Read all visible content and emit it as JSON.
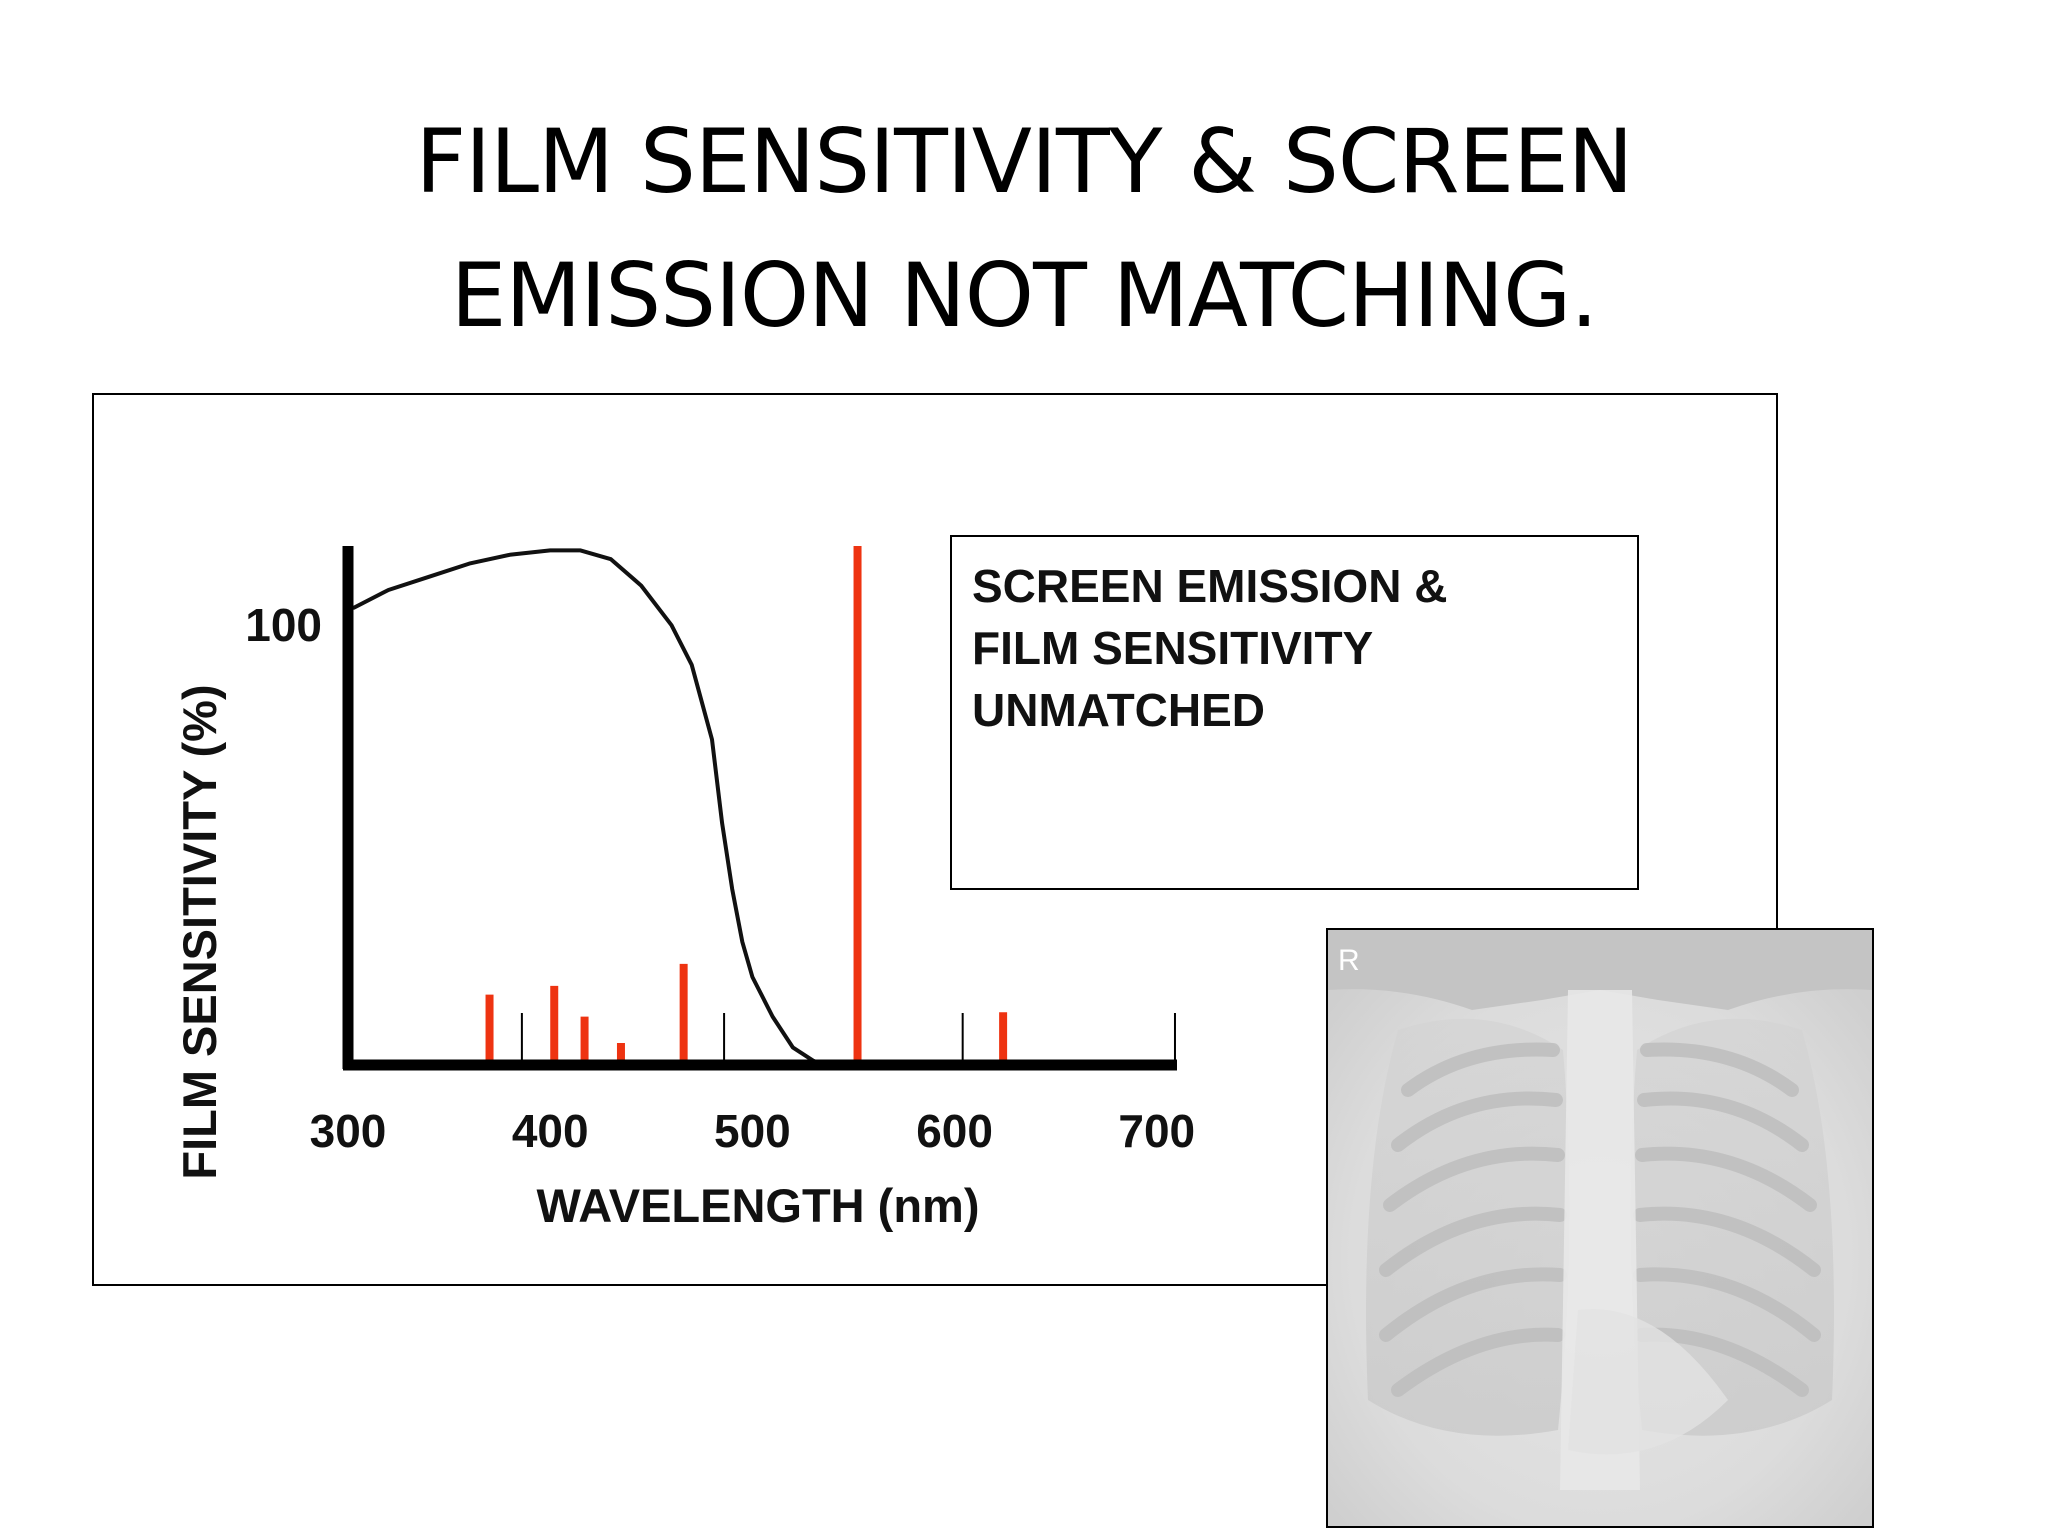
{
  "title": {
    "line1": "FILM SENSITIVITY & SCREEN",
    "line2": "EMISSION NOT MATCHING."
  },
  "note": {
    "line1": "SCREEN EMISSION &",
    "line2": "FILM SENSITIVITY",
    "line3": "UNMATCHED"
  },
  "xray": {
    "marker": "R"
  },
  "chart_data": {
    "type": "line",
    "xlabel": "WAVELENGTH (nm)",
    "ylabel": "FILM SENSITIVITY (%)",
    "xlim": [
      300,
      710
    ],
    "ylim": [
      0,
      118
    ],
    "x_ticks": [
      300,
      400,
      500,
      600,
      700
    ],
    "y_ticks": [
      100
    ],
    "grid": false,
    "sensitivity_curve": {
      "x": [
        303,
        320,
        340,
        360,
        380,
        400,
        415,
        430,
        445,
        460,
        470,
        480,
        485,
        490,
        495,
        500,
        510,
        520,
        530,
        535
      ],
      "y": [
        104,
        108,
        111,
        114,
        116,
        117,
        117,
        115,
        109,
        100,
        91,
        74,
        55,
        40,
        28,
        20,
        11,
        4,
        1,
        0
      ]
    },
    "emission_lines": {
      "x": [
        370,
        402,
        417,
        435,
        466,
        552,
        624
      ],
      "y": [
        16,
        18,
        11,
        5,
        23,
        118,
        12
      ]
    },
    "minor_marks_x": [
      386,
      486,
      604,
      709
    ],
    "colors": {
      "curve": "#111111",
      "emission": "#ee3311",
      "axis": "#000000"
    }
  }
}
